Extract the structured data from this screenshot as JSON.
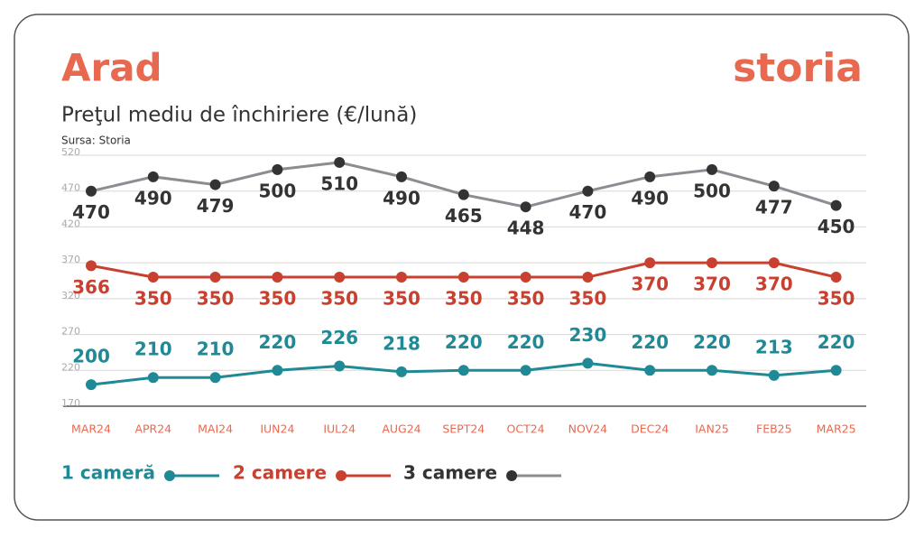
{
  "chart_data": {
    "type": "line",
    "title": "Arad",
    "logo": "storia",
    "subtitle": "Preţul mediu de închiriere (€/lună)",
    "source": "Sursa: Storia",
    "categories": [
      "MAR24",
      "APR24",
      "MAI24",
      "IUN24",
      "IUL24",
      "AUG24",
      "SEPT24",
      "OCT24",
      "NOV24",
      "DEC24",
      "IAN25",
      "FEB25",
      "MAR25"
    ],
    "series": [
      {
        "name": "1 cameră",
        "color": "#1f8a96",
        "values": [
          200,
          210,
          210,
          220,
          226,
          218,
          220,
          220,
          230,
          220,
          220,
          213,
          220
        ]
      },
      {
        "name": "2 camere",
        "color": "#c8402f",
        "values": [
          366,
          350,
          350,
          350,
          350,
          350,
          350,
          350,
          350,
          370,
          370,
          370,
          350
        ]
      },
      {
        "name": "3 camere",
        "color": "#8c8c92",
        "values": [
          470,
          490,
          479,
          500,
          510,
          490,
          465,
          448,
          470,
          490,
          500,
          477,
          450
        ]
      }
    ],
    "ylim": [
      170,
      520
    ],
    "yticks": [
      170,
      220,
      270,
      320,
      370,
      420,
      470,
      520
    ],
    "grid": true
  }
}
